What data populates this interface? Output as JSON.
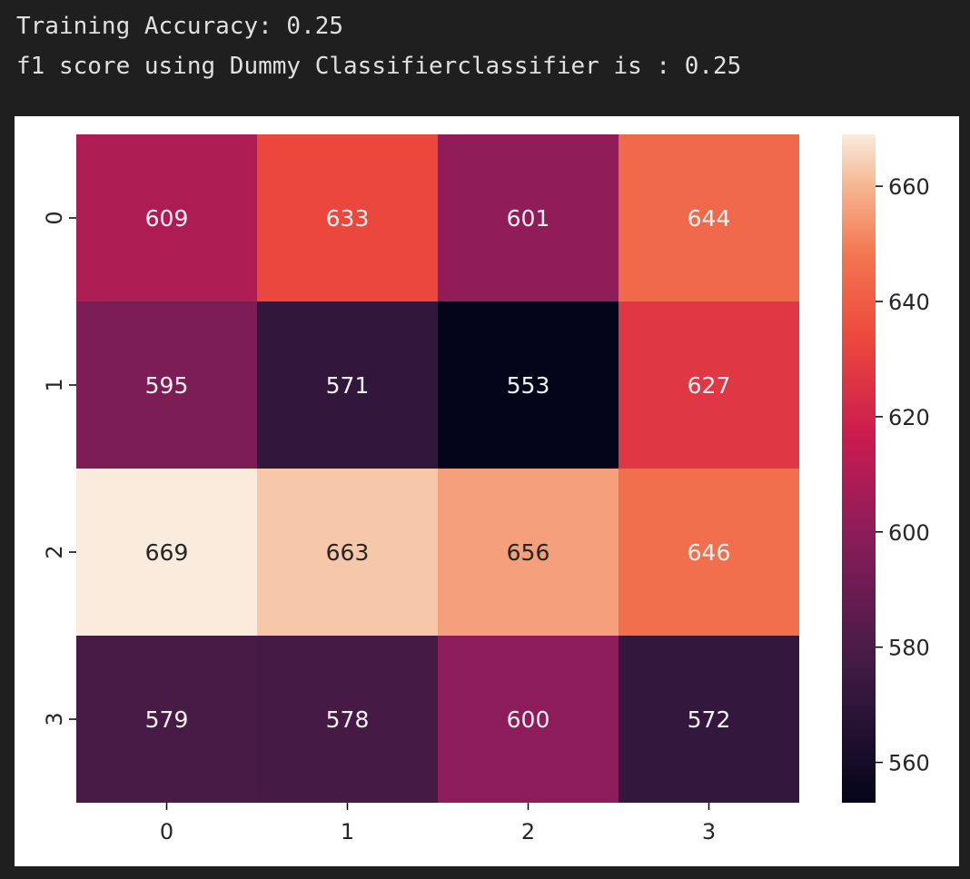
{
  "output": {
    "line1": "Training Accuracy: 0.25",
    "line2": "f1 score using Dummy Classifierclassifier is : 0.25"
  },
  "colors": {
    "background": "#1f1f1f",
    "panel": "#ffffff",
    "axis": "#000000",
    "text_dark": "#262626",
    "text_light": "#f2f2f2"
  },
  "chart_data": {
    "type": "heatmap",
    "title": "",
    "xlabel": "",
    "ylabel": "",
    "x_categories": [
      "0",
      "1",
      "2",
      "3"
    ],
    "y_categories": [
      "0",
      "1",
      "2",
      "3"
    ],
    "values": [
      [
        609,
        633,
        601,
        644
      ],
      [
        595,
        571,
        553,
        627
      ],
      [
        669,
        663,
        656,
        646
      ],
      [
        579,
        578,
        600,
        572
      ]
    ],
    "colormap": "rocket",
    "color_range": [
      553,
      669
    ],
    "colorbar_ticks": [
      560,
      580,
      600,
      620,
      640,
      660
    ],
    "annotate": true
  }
}
